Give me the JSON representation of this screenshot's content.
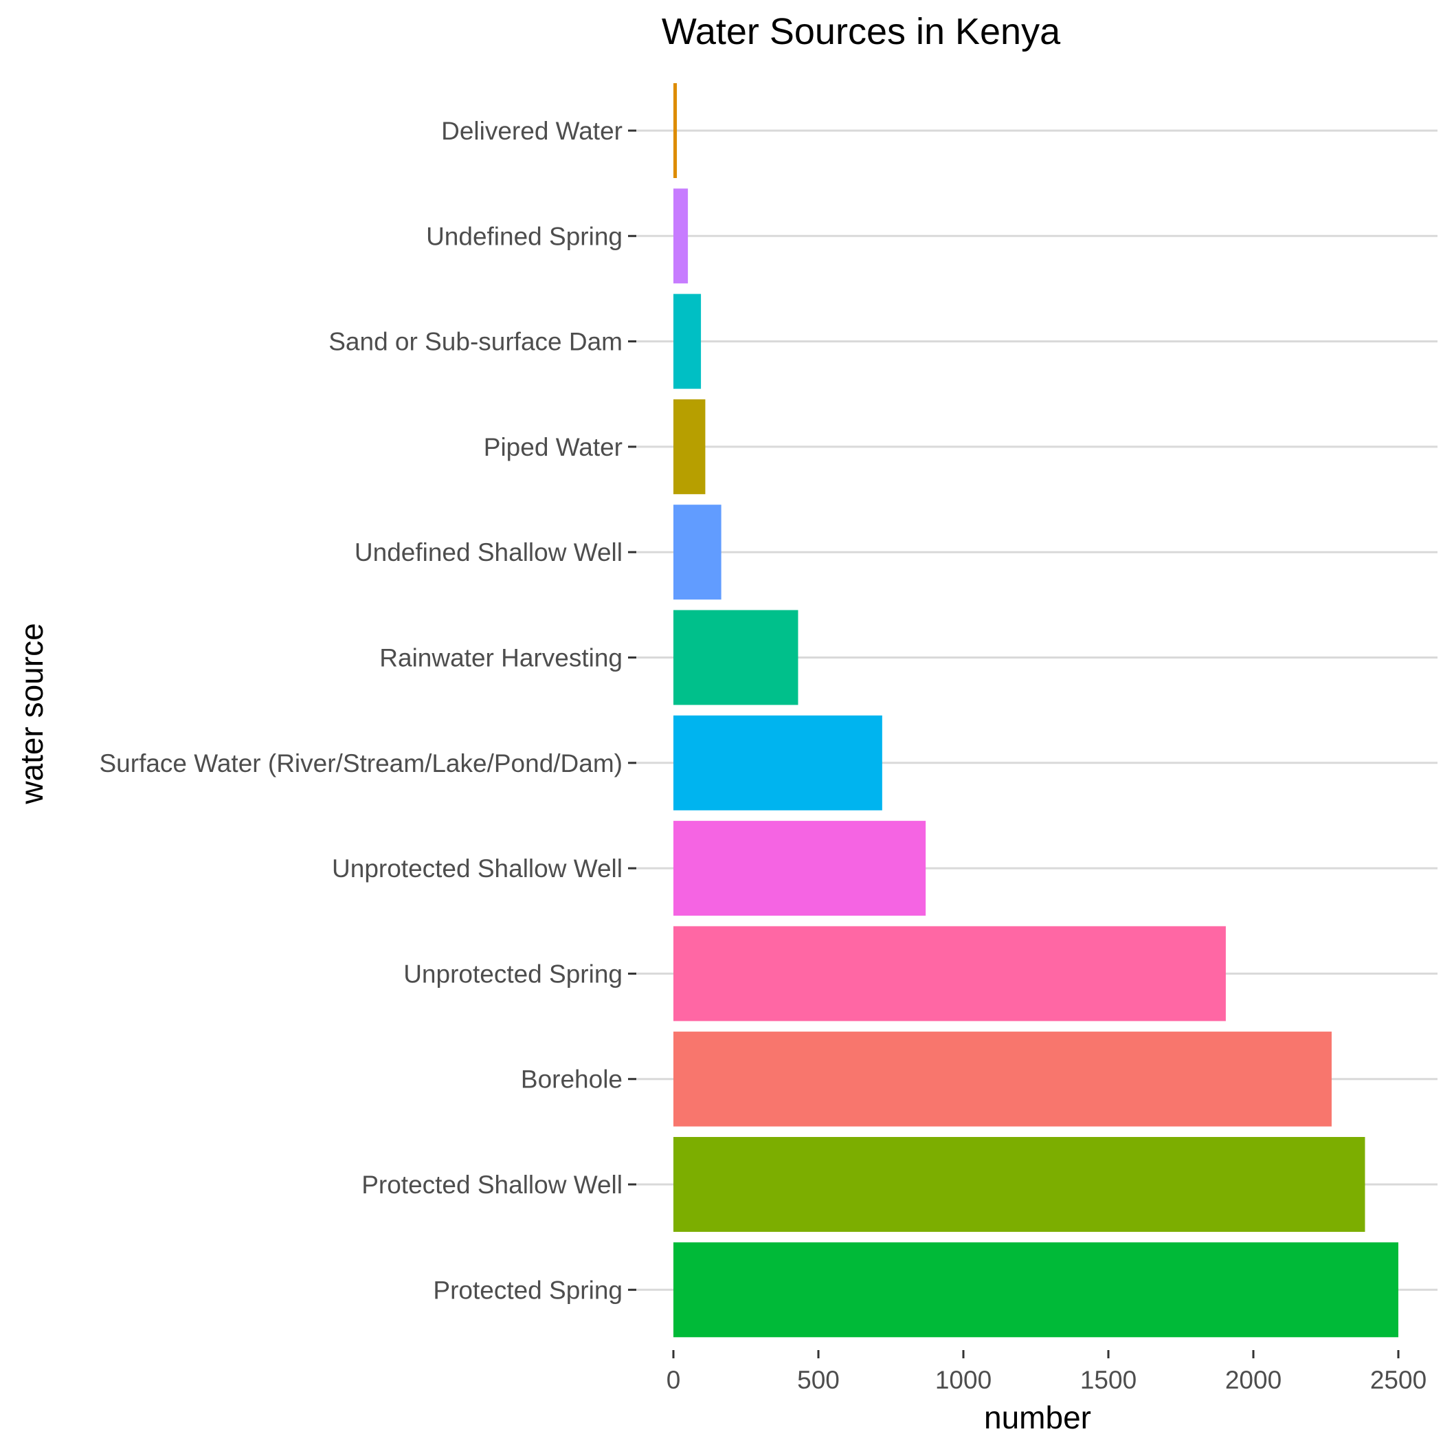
{
  "chart_data": {
    "type": "bar",
    "orientation": "horizontal",
    "title": "Water Sources in Kenya",
    "xlabel": "number",
    "ylabel": "water source",
    "xlim": [
      0,
      2600
    ],
    "x_ticks": [
      0,
      500,
      1000,
      1500,
      2000,
      2500
    ],
    "grid": "major gridlines on category axis only",
    "categories": [
      "Protected Spring",
      "Protected Shallow Well",
      "Borehole",
      "Unprotected Spring",
      "Unprotected Shallow Well",
      "Surface Water (River/Stream/Lake/Pond/Dam)",
      "Rainwater Harvesting",
      "Undefined Shallow Well",
      "Piped Water",
      "Sand or Sub-surface Dam",
      "Undefined Spring",
      "Delivered Water"
    ],
    "values": [
      2500,
      2385,
      2270,
      1905,
      870,
      720,
      430,
      165,
      110,
      95,
      50,
      12
    ],
    "colors": [
      "#00BA38",
      "#7CAE00",
      "#F8766D",
      "#FF67A4",
      "#F564E3",
      "#00B4EF",
      "#00C08B",
      "#619CFF",
      "#B79F00",
      "#00BFC4",
      "#C77CFF",
      "#DE8C00"
    ]
  }
}
